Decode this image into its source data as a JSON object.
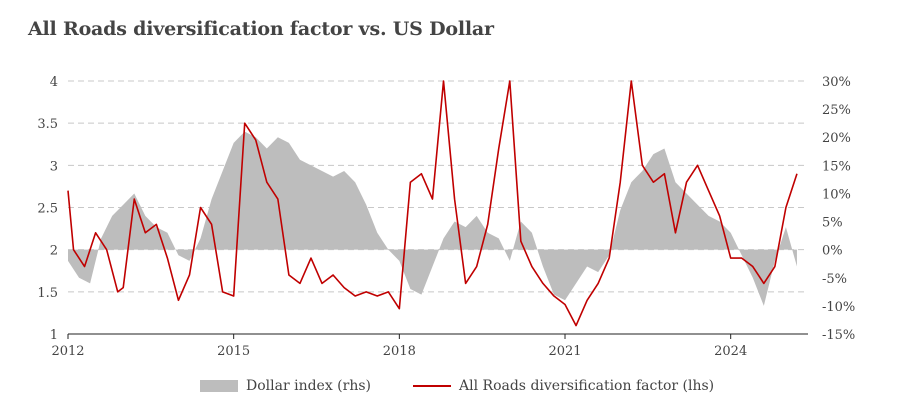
{
  "chart_data": {
    "type": "line",
    "title": "All Roads diversification factor vs. US Dollar",
    "colors": {
      "dollar": "#bdbdbd",
      "factor": "#c00000",
      "grid": "#c8c8c8",
      "axis": "#222222"
    },
    "x_range": [
      2012,
      2025.4
    ],
    "x_ticks": [
      "2012",
      "2015",
      "2018",
      "2021",
      "2024"
    ],
    "left_axis": {
      "range": [
        1,
        4
      ],
      "ticks": [
        "1",
        "1.5",
        "2",
        "2.5",
        "3",
        "3.5",
        "4"
      ]
    },
    "right_axis": {
      "range": [
        -15,
        30
      ],
      "ticks": [
        "-15%",
        "-10%",
        "-5%",
        "0%",
        "5%",
        "10%",
        "15%",
        "20%",
        "25%",
        "30%"
      ]
    },
    "grid": "horizontal dashed",
    "legend_placement": "bottom",
    "series": [
      {
        "name": "Dollar index (rhs)",
        "axis": "right",
        "kind": "area",
        "x": [
          2012.0,
          2012.2,
          2012.4,
          2012.6,
          2012.8,
          2013.0,
          2013.2,
          2013.4,
          2013.6,
          2013.8,
          2014.0,
          2014.2,
          2014.4,
          2014.6,
          2014.8,
          2015.0,
          2015.2,
          2015.4,
          2015.6,
          2015.8,
          2016.0,
          2016.2,
          2016.4,
          2016.6,
          2016.8,
          2017.0,
          2017.2,
          2017.4,
          2017.6,
          2017.8,
          2018.0,
          2018.2,
          2018.4,
          2018.6,
          2018.8,
          2019.0,
          2019.2,
          2019.4,
          2019.6,
          2019.8,
          2020.0,
          2020.2,
          2020.4,
          2020.6,
          2020.8,
          2021.0,
          2021.2,
          2021.4,
          2021.6,
          2021.8,
          2022.0,
          2022.2,
          2022.4,
          2022.6,
          2022.8,
          2023.0,
          2023.2,
          2023.4,
          2023.6,
          2023.8,
          2024.0,
          2024.2,
          2024.4,
          2024.6,
          2024.8,
          2025.0,
          2025.2
        ],
        "y": [
          -2,
          -5,
          -6,
          2,
          6,
          8,
          10,
          6,
          4,
          3,
          -1,
          -2,
          2,
          9,
          14,
          19,
          21,
          20,
          18,
          20,
          19,
          16,
          15,
          14,
          13,
          14,
          12,
          8,
          3,
          0,
          -2,
          -7,
          -8,
          -3,
          2,
          5,
          4,
          6,
          3,
          2,
          -2,
          5,
          3,
          -3,
          -8,
          -9,
          -6,
          -3,
          -4,
          -1,
          7,
          12,
          14,
          17,
          18,
          12,
          10,
          8,
          6,
          5,
          3,
          -1,
          -5,
          -10,
          -2,
          4,
          -3
        ]
      },
      {
        "name": "All Roads diversification factor (lhs)",
        "axis": "left",
        "kind": "line",
        "x": [
          2012.0,
          2012.1,
          2012.3,
          2012.5,
          2012.7,
          2012.9,
          2013.0,
          2013.2,
          2013.4,
          2013.6,
          2013.8,
          2014.0,
          2014.2,
          2014.4,
          2014.6,
          2014.8,
          2015.0,
          2015.2,
          2015.4,
          2015.6,
          2015.8,
          2016.0,
          2016.2,
          2016.4,
          2016.6,
          2016.8,
          2017.0,
          2017.2,
          2017.4,
          2017.6,
          2017.8,
          2018.0,
          2018.2,
          2018.4,
          2018.6,
          2018.8,
          2019.0,
          2019.2,
          2019.4,
          2019.6,
          2019.8,
          2020.0,
          2020.2,
          2020.4,
          2020.6,
          2020.8,
          2021.0,
          2021.2,
          2021.4,
          2021.6,
          2021.8,
          2022.0,
          2022.2,
          2022.4,
          2022.6,
          2022.8,
          2023.0,
          2023.2,
          2023.4,
          2023.6,
          2023.8,
          2024.0,
          2024.2,
          2024.4,
          2024.6,
          2024.8,
          2025.0,
          2025.2
        ],
        "y": [
          2.7,
          2.0,
          1.8,
          2.2,
          2.0,
          1.5,
          1.55,
          2.6,
          2.2,
          2.3,
          1.9,
          1.4,
          1.7,
          2.5,
          2.3,
          1.5,
          1.45,
          3.5,
          3.3,
          2.8,
          2.6,
          1.7,
          1.6,
          1.9,
          1.6,
          1.7,
          1.55,
          1.45,
          1.5,
          1.45,
          1.5,
          1.3,
          2.8,
          2.9,
          2.6,
          4.0,
          2.6,
          1.6,
          1.8,
          2.3,
          3.2,
          4.0,
          2.1,
          1.8,
          1.6,
          1.45,
          1.35,
          1.1,
          1.4,
          1.6,
          1.9,
          2.8,
          4.0,
          3.0,
          2.8,
          2.9,
          2.2,
          2.8,
          3.0,
          2.7,
          2.4,
          1.9,
          1.9,
          1.8,
          1.6,
          1.8,
          2.5,
          2.9
        ]
      }
    ]
  }
}
